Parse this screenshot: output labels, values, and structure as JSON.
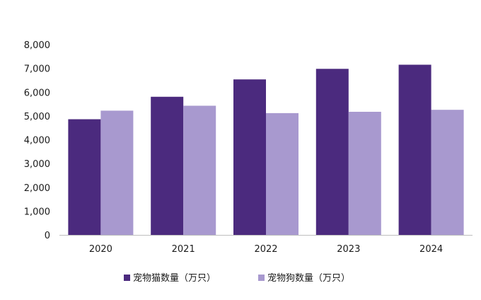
{
  "chart_data": {
    "type": "bar",
    "title": "",
    "xlabel": "",
    "ylabel": "",
    "categories": [
      "2020",
      "2021",
      "2022",
      "2023",
      "2024"
    ],
    "series": [
      {
        "name": "宠物猫数量（万只）",
        "color": "#4b2a7e",
        "values": [
          4862,
          5806,
          6536,
          6980,
          7153
        ]
      },
      {
        "name": "宠物狗数量（万只）",
        "color": "#a899cf",
        "values": [
          5222,
          5429,
          5119,
          5175,
          5258
        ]
      }
    ],
    "ylim": [
      0,
      8000
    ],
    "yticks": [
      0,
      1000,
      2000,
      3000,
      4000,
      5000,
      6000,
      7000,
      8000
    ],
    "ytick_labels": [
      "0",
      "1,000",
      "2,000",
      "3,000",
      "4,000",
      "5,000",
      "6,000",
      "7,000",
      "8,000"
    ],
    "grid": false,
    "legend_position": "bottom"
  }
}
